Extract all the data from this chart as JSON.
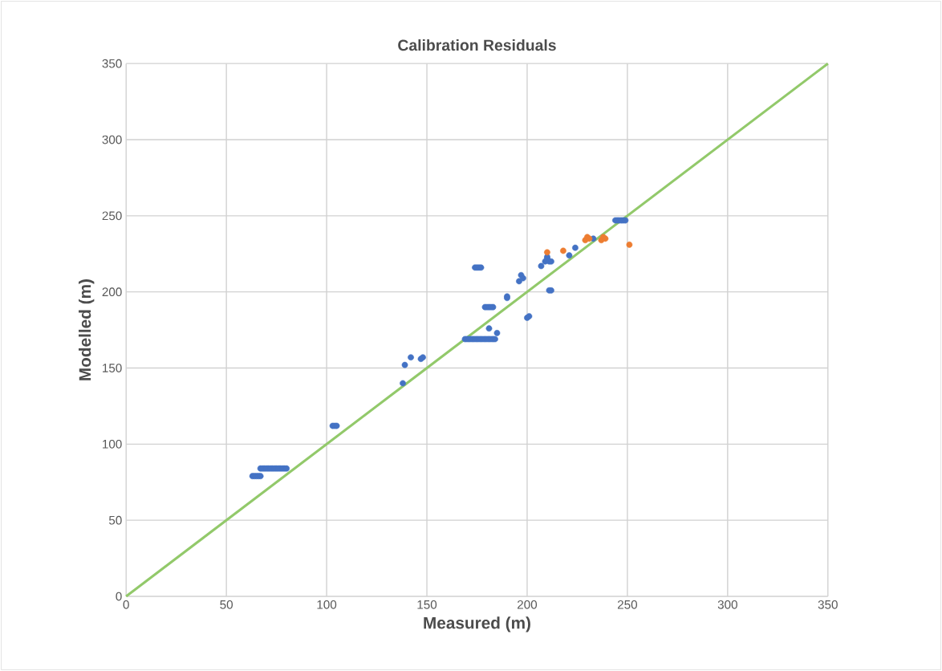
{
  "chart_data": {
    "type": "scatter",
    "title": "Calibration Residuals",
    "xlabel": "Measured (m)",
    "ylabel": "Modelled (m)",
    "xlim": [
      0,
      350
    ],
    "ylim": [
      0,
      350
    ],
    "xticks": [
      0,
      50,
      100,
      150,
      200,
      250,
      300,
      350
    ],
    "yticks": [
      0,
      50,
      100,
      150,
      200,
      250,
      300,
      350
    ],
    "grid": true,
    "series": [
      {
        "type": "scatter",
        "marker": "circle",
        "color": "#4472c4",
        "x": [
          63,
          64,
          65,
          66,
          67,
          67,
          68,
          69,
          70,
          71,
          72,
          73,
          74,
          75,
          76,
          77,
          78,
          79,
          80,
          103,
          104,
          105,
          138,
          139,
          142,
          147,
          148,
          169,
          170,
          171,
          172,
          173,
          174,
          175,
          176,
          177,
          178,
          179,
          180,
          181,
          182,
          183,
          184,
          174,
          175,
          176,
          177,
          179,
          180,
          181,
          182,
          183,
          181,
          185,
          190,
          190,
          196,
          197,
          198,
          200,
          201,
          207,
          209,
          210,
          210,
          211,
          212,
          211,
          212,
          221,
          224,
          233,
          244,
          245,
          246,
          247,
          248,
          249
        ],
        "values": [
          79,
          79,
          79,
          79,
          79,
          84,
          84,
          84,
          84,
          84,
          84,
          84,
          84,
          84,
          84,
          84,
          84,
          84,
          84,
          112,
          112,
          112,
          140,
          152,
          157,
          156,
          157,
          169,
          169,
          169,
          169,
          169,
          169,
          169,
          169,
          169,
          169,
          169,
          169,
          169,
          169,
          169,
          169,
          216,
          216,
          216,
          216,
          190,
          190,
          190,
          190,
          190,
          176,
          173,
          197,
          196,
          207,
          211,
          209,
          183,
          184,
          217,
          220,
          223,
          222,
          220,
          220,
          201,
          201,
          224,
          229,
          235,
          247,
          247,
          247,
          247,
          247,
          247
        ]
      },
      {
        "type": "scatter",
        "marker": "circle",
        "color": "#ed7d31",
        "x": [
          210,
          218,
          229,
          230,
          231,
          236,
          237,
          238,
          239,
          251
        ],
        "values": [
          226,
          227,
          234,
          236,
          235,
          null,
          234,
          236,
          235,
          231
        ]
      },
      {
        "type": "line",
        "color": "#92c96a",
        "marker": "none",
        "x": [
          0,
          350
        ],
        "values": [
          0,
          350
        ]
      }
    ]
  }
}
